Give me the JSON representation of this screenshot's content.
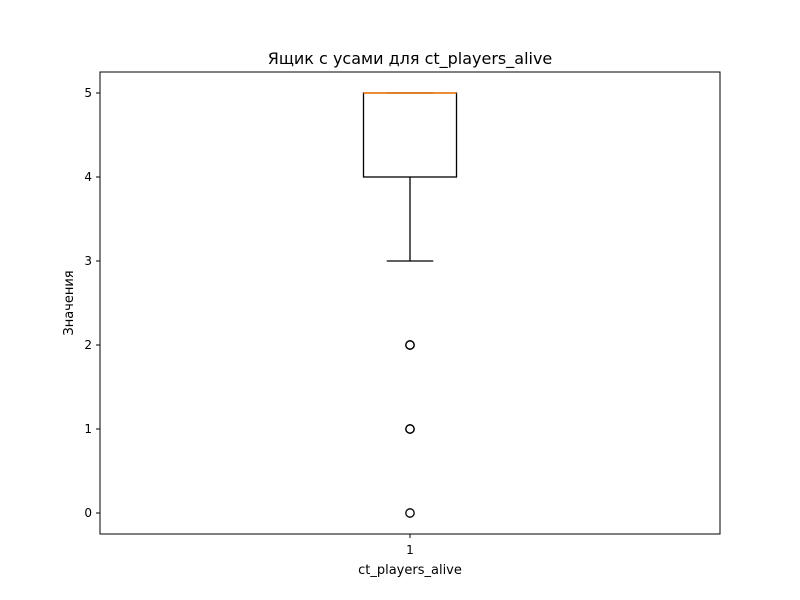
{
  "chart_data": {
    "type": "box",
    "title": "Ящик с усами для ct_players_alive",
    "xlabel": "ct_players_alive",
    "ylabel": "Значения",
    "categories": [
      "1"
    ],
    "yticks": [
      0,
      1,
      2,
      3,
      4,
      5
    ],
    "ylim": [
      -0.25,
      5.25
    ],
    "boxes": [
      {
        "category": "1",
        "whisker_low": 3,
        "q1": 4,
        "median": 5,
        "q3": 5,
        "whisker_high": 5,
        "outliers": [
          2,
          2,
          1,
          1,
          0
        ]
      }
    ],
    "grid": false,
    "colors": {
      "box": "#000000",
      "median": "#ff7f0e",
      "outlier": "#000000"
    }
  }
}
